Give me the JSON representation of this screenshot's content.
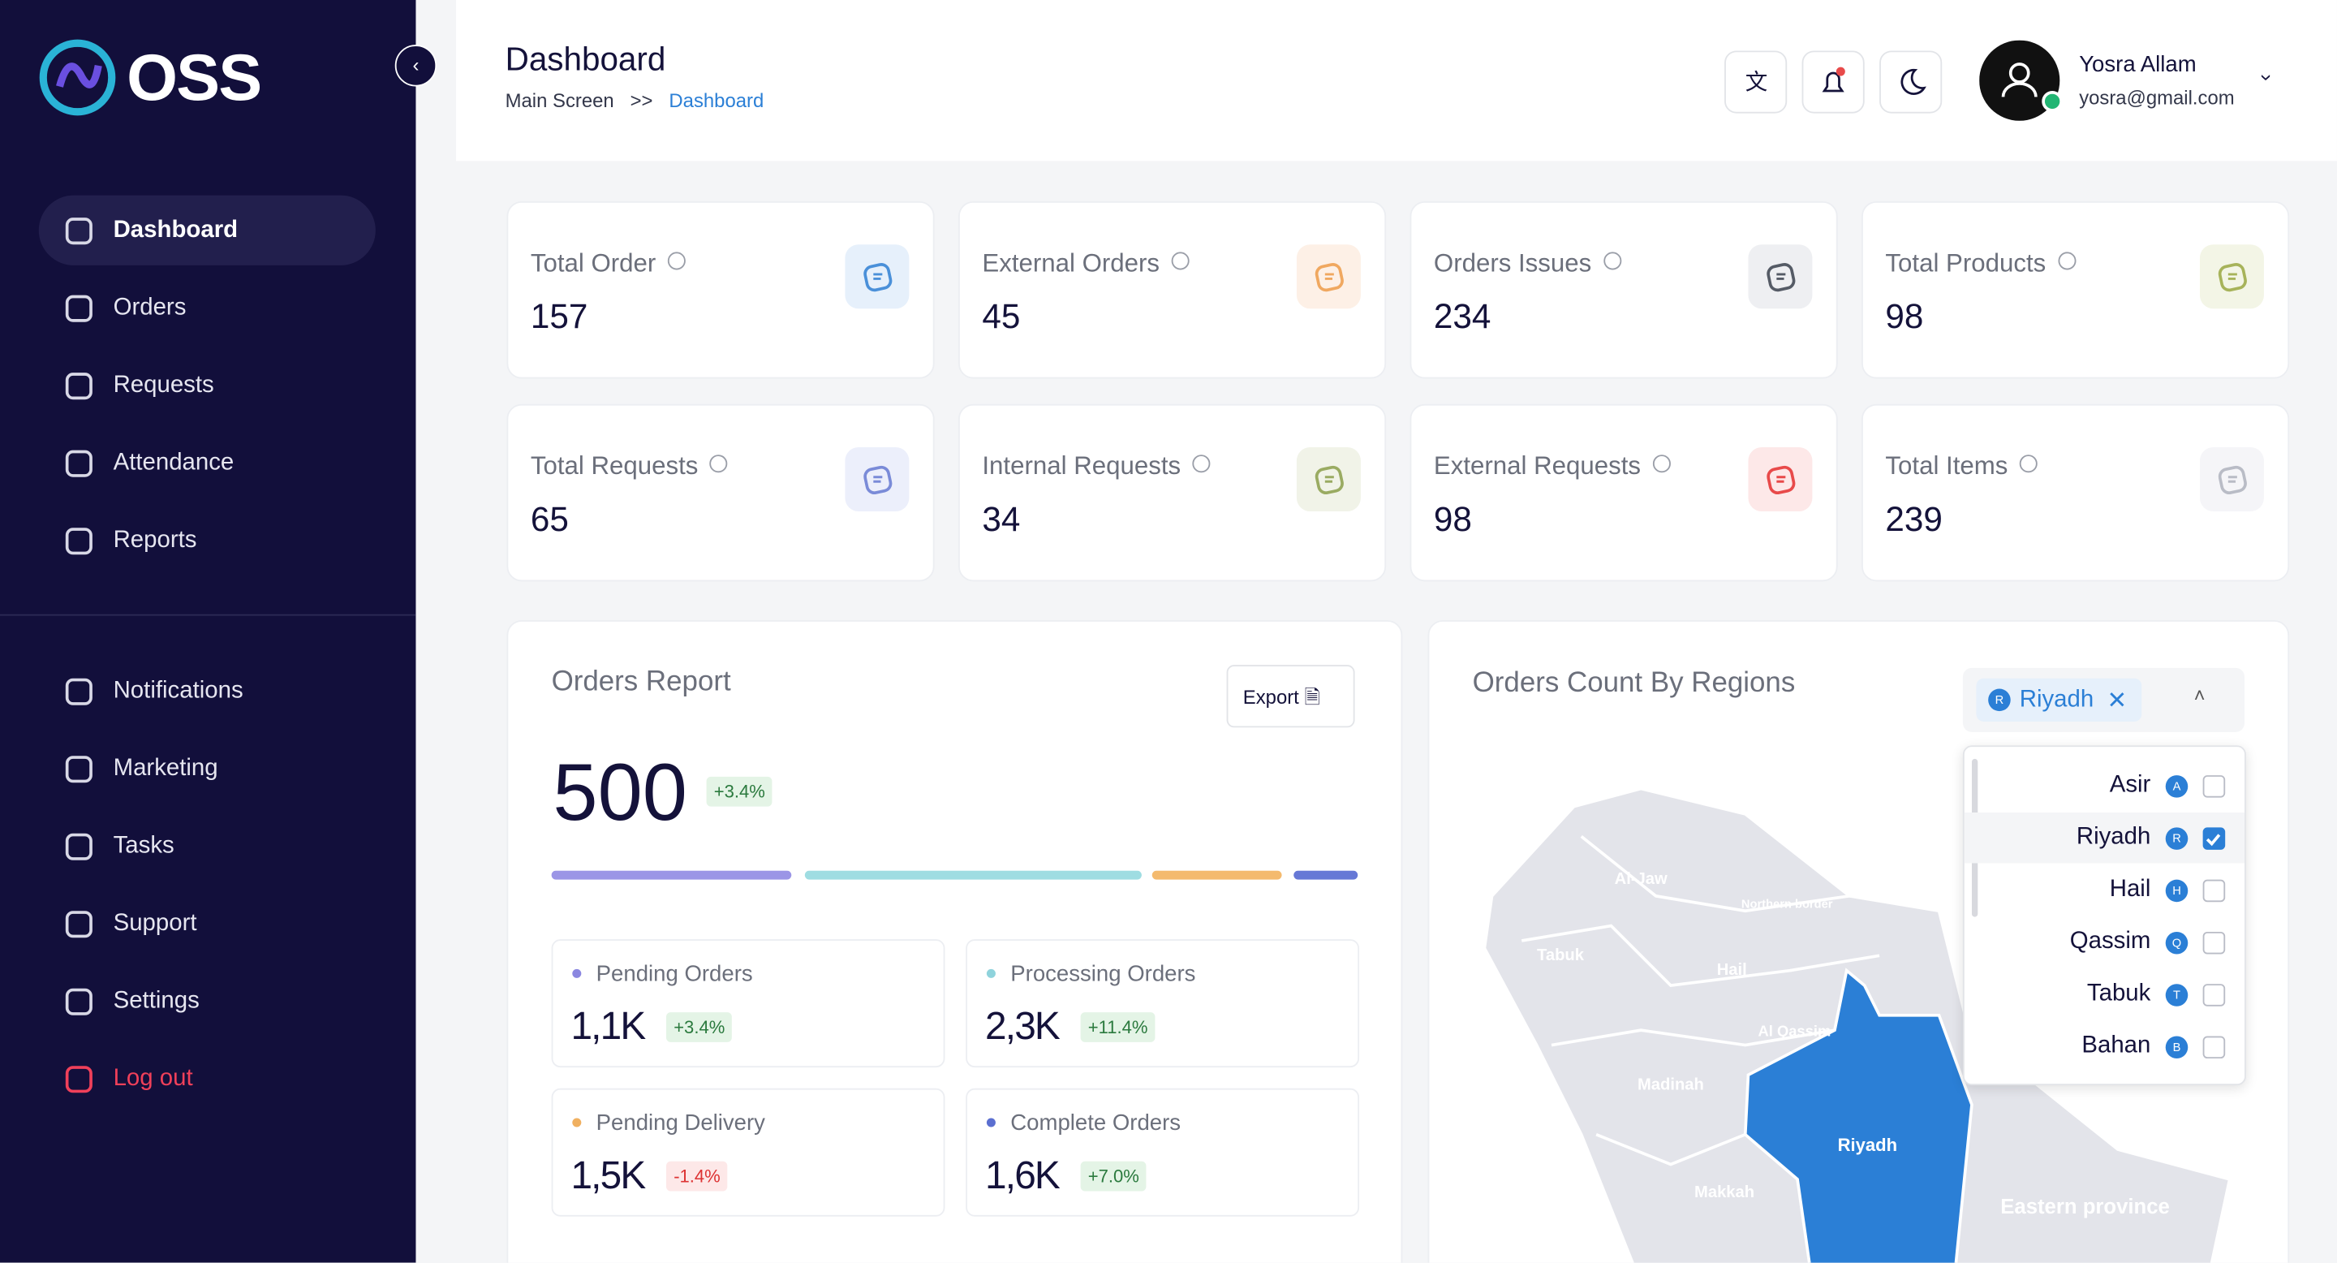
{
  "sidebar": {
    "logo": "OSS",
    "nav": [
      "Dashboard",
      "Orders",
      "Requests",
      "Attendance",
      "Reports"
    ],
    "nav2": [
      "Notifications",
      "Marketing",
      "Tasks",
      "Support",
      "Settings"
    ],
    "logout": "Log out"
  },
  "header": {
    "title": "Dashboard",
    "breadcrumb": [
      "Main Screen",
      ">>",
      "Dashboard"
    ],
    "user": {
      "name": "Yosra Allam",
      "email": "yosra@gmail.com"
    }
  },
  "stats": [
    {
      "label": "Total Order",
      "value": "157",
      "color": "#4a90d9",
      "bg": "#e6f0fb"
    },
    {
      "label": "External Orders",
      "value": "45",
      "color": "#f0a860",
      "bg": "#fdf0e6"
    },
    {
      "label": "Orders Issues",
      "value": "234",
      "color": "#555b66",
      "bg": "#eeeff2"
    },
    {
      "label": "Total Products",
      "value": "98",
      "color": "#a7b35a",
      "bg": "#f3f5e6"
    },
    {
      "label": "Total Requests",
      "value": "65",
      "color": "#7a8bd8",
      "bg": "#eceffb"
    },
    {
      "label": "Internal Requests",
      "value": "34",
      "color": "#9aab62",
      "bg": "#f1f3e8"
    },
    {
      "label": "External Requests",
      "value": "98",
      "color": "#e84a4a",
      "bg": "#fde8e8"
    },
    {
      "label": "Total Items",
      "value": "239",
      "color": "#b9bcc6",
      "bg": "#f5f5f8"
    }
  ],
  "orders_report": {
    "title": "Orders Report",
    "export": "Export",
    "total": "500",
    "change": "+3.4%",
    "items": [
      {
        "label": "Pending Orders",
        "value": "1,1K",
        "change": "+3.4%",
        "color": "#8b87e0"
      },
      {
        "label": "Processing Orders",
        "value": "2,3K",
        "change": "+11.4%",
        "color": "#8fd3dc"
      },
      {
        "label": "Pending Delivery",
        "value": "1,5K",
        "change": "-1.4%",
        "color": "#f0b060"
      },
      {
        "label": "Complete Orders",
        "value": "1,6K",
        "change": "+7.0%",
        "color": "#5b6fd0"
      }
    ]
  },
  "regions": {
    "title": "Orders Count By Regions",
    "chip": {
      "initial": "R",
      "name": "Riyadh"
    },
    "options": [
      {
        "name": "Asir",
        "initial": "A",
        "checked": false
      },
      {
        "name": "Riyadh",
        "initial": "R",
        "checked": true
      },
      {
        "name": "Hail",
        "initial": "H",
        "checked": false
      },
      {
        "name": "Qassim",
        "initial": "Q",
        "checked": false
      },
      {
        "name": "Tabuk",
        "initial": "T",
        "checked": false
      },
      {
        "name": "Bahan",
        "initial": "B",
        "checked": false
      }
    ],
    "map_labels": [
      "Al-Jaw",
      "Northern border",
      "Tabuk",
      "Hail",
      "Al Qassim",
      "Madinah",
      "Riyadh",
      "Makkah",
      "Eastern province"
    ]
  }
}
